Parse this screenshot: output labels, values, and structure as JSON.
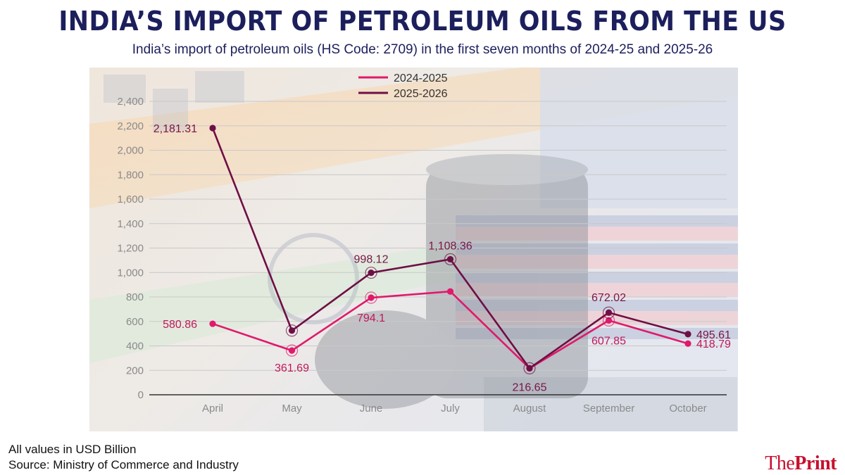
{
  "title": "INDIA’S IMPORT OF PETROLEUM OILS FROM THE US",
  "subtitle": "India’s import of petroleum oils (HS Code: 2709) in the first seven months of 2024-25 and 2025-26",
  "footnote_units": "All values in USD Billion",
  "footnote_source": "Source: Ministry of Commerce and Industry",
  "brand": {
    "part1": "The",
    "part2": "Print"
  },
  "colors": {
    "series1": "#e0196b",
    "series2": "#6e0f45",
    "label1": "#c2185b",
    "label2": "#7a1448",
    "title": "#1c1f5c"
  },
  "chart_data": {
    "type": "line",
    "title": "INDIA’S IMPORT OF PETROLEUM OILS FROM THE US",
    "xlabel": "",
    "ylabel": "",
    "categories": [
      "April",
      "May",
      "June",
      "July",
      "August",
      "September",
      "October"
    ],
    "ylim": [
      0,
      2400
    ],
    "yticks": [
      0,
      200,
      400,
      600,
      800,
      1000,
      1200,
      1400,
      1600,
      1800,
      2000,
      2200,
      2400
    ],
    "ytick_labels": [
      "0",
      "200",
      "400",
      "600",
      "800",
      "1,000",
      "1,200",
      "1,400",
      "1,600",
      "1,800",
      "2,000",
      "2,200",
      "2,400"
    ],
    "grid": true,
    "legend_position": "top-center",
    "series": [
      {
        "name": "2024-2025",
        "values": [
          580.86,
          361.69,
          794.1,
          845,
          216.65,
          607.85,
          418.79
        ],
        "labels": [
          "580.86",
          "361.69",
          "794.1",
          "",
          "",
          "607.85",
          "418.79"
        ]
      },
      {
        "name": "2025-2026",
        "values": [
          2181.31,
          525,
          998.12,
          1108.36,
          216.65,
          672.02,
          495.61
        ],
        "labels": [
          "2,181.31",
          "",
          "998.12",
          "1,108.36",
          "216.65",
          "672.02",
          "495.61"
        ]
      }
    ]
  }
}
